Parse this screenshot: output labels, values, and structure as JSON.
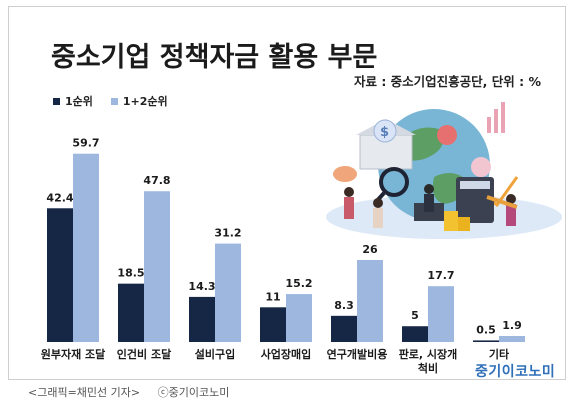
{
  "title": "중소기업 정책자금 활용 부문",
  "source": "자료 : 중소기업진흥공단, 단위 : %",
  "colors": {
    "rank1": "#152744",
    "rank12": "#9db7df"
  },
  "chart_data": {
    "type": "bar",
    "title": "중소기업 정책자금 활용 부문",
    "categories": [
      "원부자재 조달",
      "인건비 조달",
      "설비구입",
      "사업장매입",
      "연구개발비용",
      "판로, 시장개척비",
      "기타"
    ],
    "series": [
      {
        "name": "1순위",
        "values": [
          42.4,
          18.5,
          14.3,
          11,
          8.3,
          5,
          0.5
        ]
      },
      {
        "name": "1+2순위",
        "values": [
          59.7,
          47.8,
          31.2,
          15.2,
          26,
          17.7,
          1.9
        ]
      }
    ],
    "value_labels": {
      "1순위": [
        "42.4",
        "18.5",
        "14.3",
        "11",
        "8.3",
        "5",
        "0.5"
      ],
      "1+2순위": [
        "59.7",
        "47.8",
        "31.2",
        "15.2",
        "26",
        "17.7",
        "1.9"
      ]
    },
    "category_labels": [
      [
        "원부자재 조달"
      ],
      [
        "인건비 조달"
      ],
      [
        "설비구입"
      ],
      [
        "사업장매입"
      ],
      [
        "연구개발비용"
      ],
      [
        "판로, 시장개",
        "척비"
      ],
      [
        "기타"
      ]
    ],
    "ylim": [
      0,
      65
    ],
    "legend_position": "top-left",
    "grid": false
  },
  "caption": {
    "credit": "<그래픽=채민선 기자>",
    "copyright": "ⓒ중기이코노미"
  },
  "logo": "중기이코노미",
  "illustration": "business-finance-illustration"
}
